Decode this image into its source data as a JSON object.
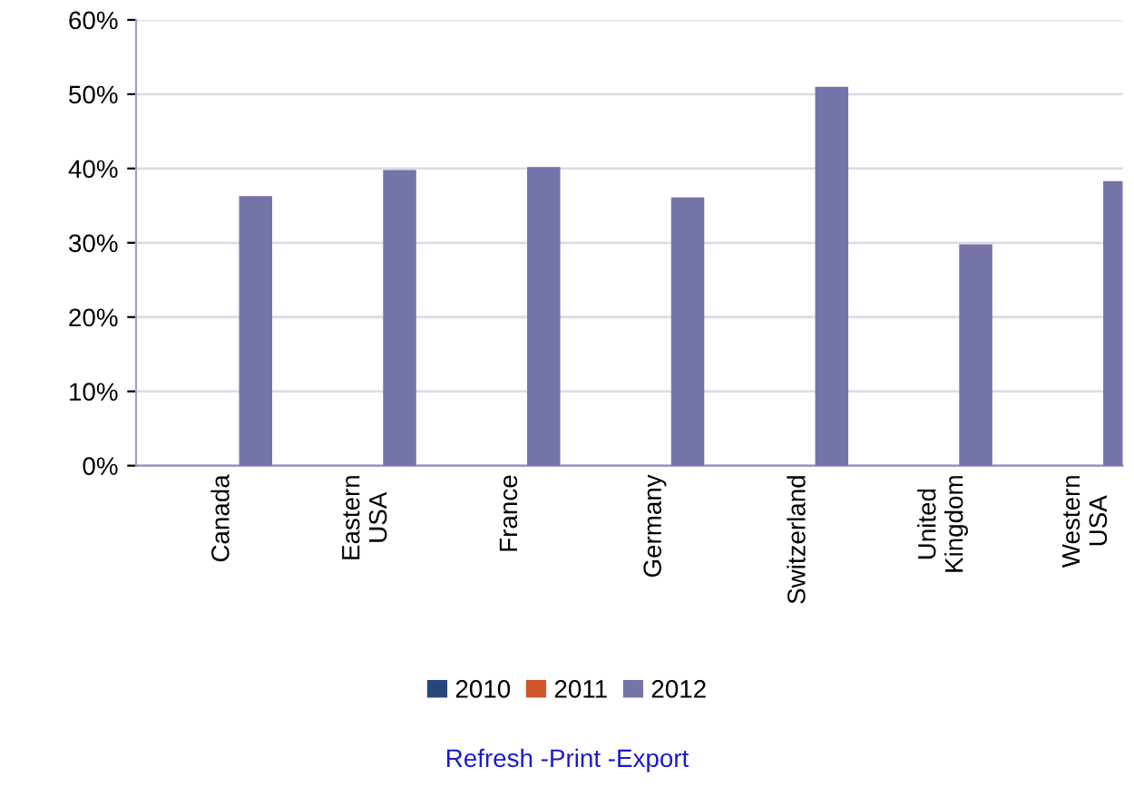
{
  "chart_data": {
    "type": "bar",
    "categories": [
      "Canada",
      "Eastern\nUSA",
      "France",
      "Germany",
      "Switzerland",
      "United\nKingdom",
      "Western\nUSA"
    ],
    "series": [
      {
        "name": "2010",
        "color": "#27477a",
        "values": [
          null,
          null,
          null,
          null,
          null,
          null,
          null
        ]
      },
      {
        "name": "2011",
        "color": "#d0562a",
        "values": [
          null,
          null,
          null,
          null,
          null,
          null,
          null
        ]
      },
      {
        "name": "2012",
        "color": "#7474a8",
        "values": [
          36.3,
          39.8,
          40.2,
          36.1,
          51,
          29.8,
          38.3
        ]
      }
    ],
    "ylim": [
      0,
      60
    ],
    "yticks": [
      {
        "value": 0,
        "label": "0%"
      },
      {
        "value": 10,
        "label": "10%"
      },
      {
        "value": 20,
        "label": "20%"
      },
      {
        "value": 30,
        "label": "30%"
      },
      {
        "value": 40,
        "label": "40%"
      },
      {
        "value": 50,
        "label": "50%"
      },
      {
        "value": 60,
        "label": "60%"
      }
    ],
    "grid": "y",
    "legend": "bottom",
    "annotations": [
      "Refresh -Print -Export"
    ]
  }
}
